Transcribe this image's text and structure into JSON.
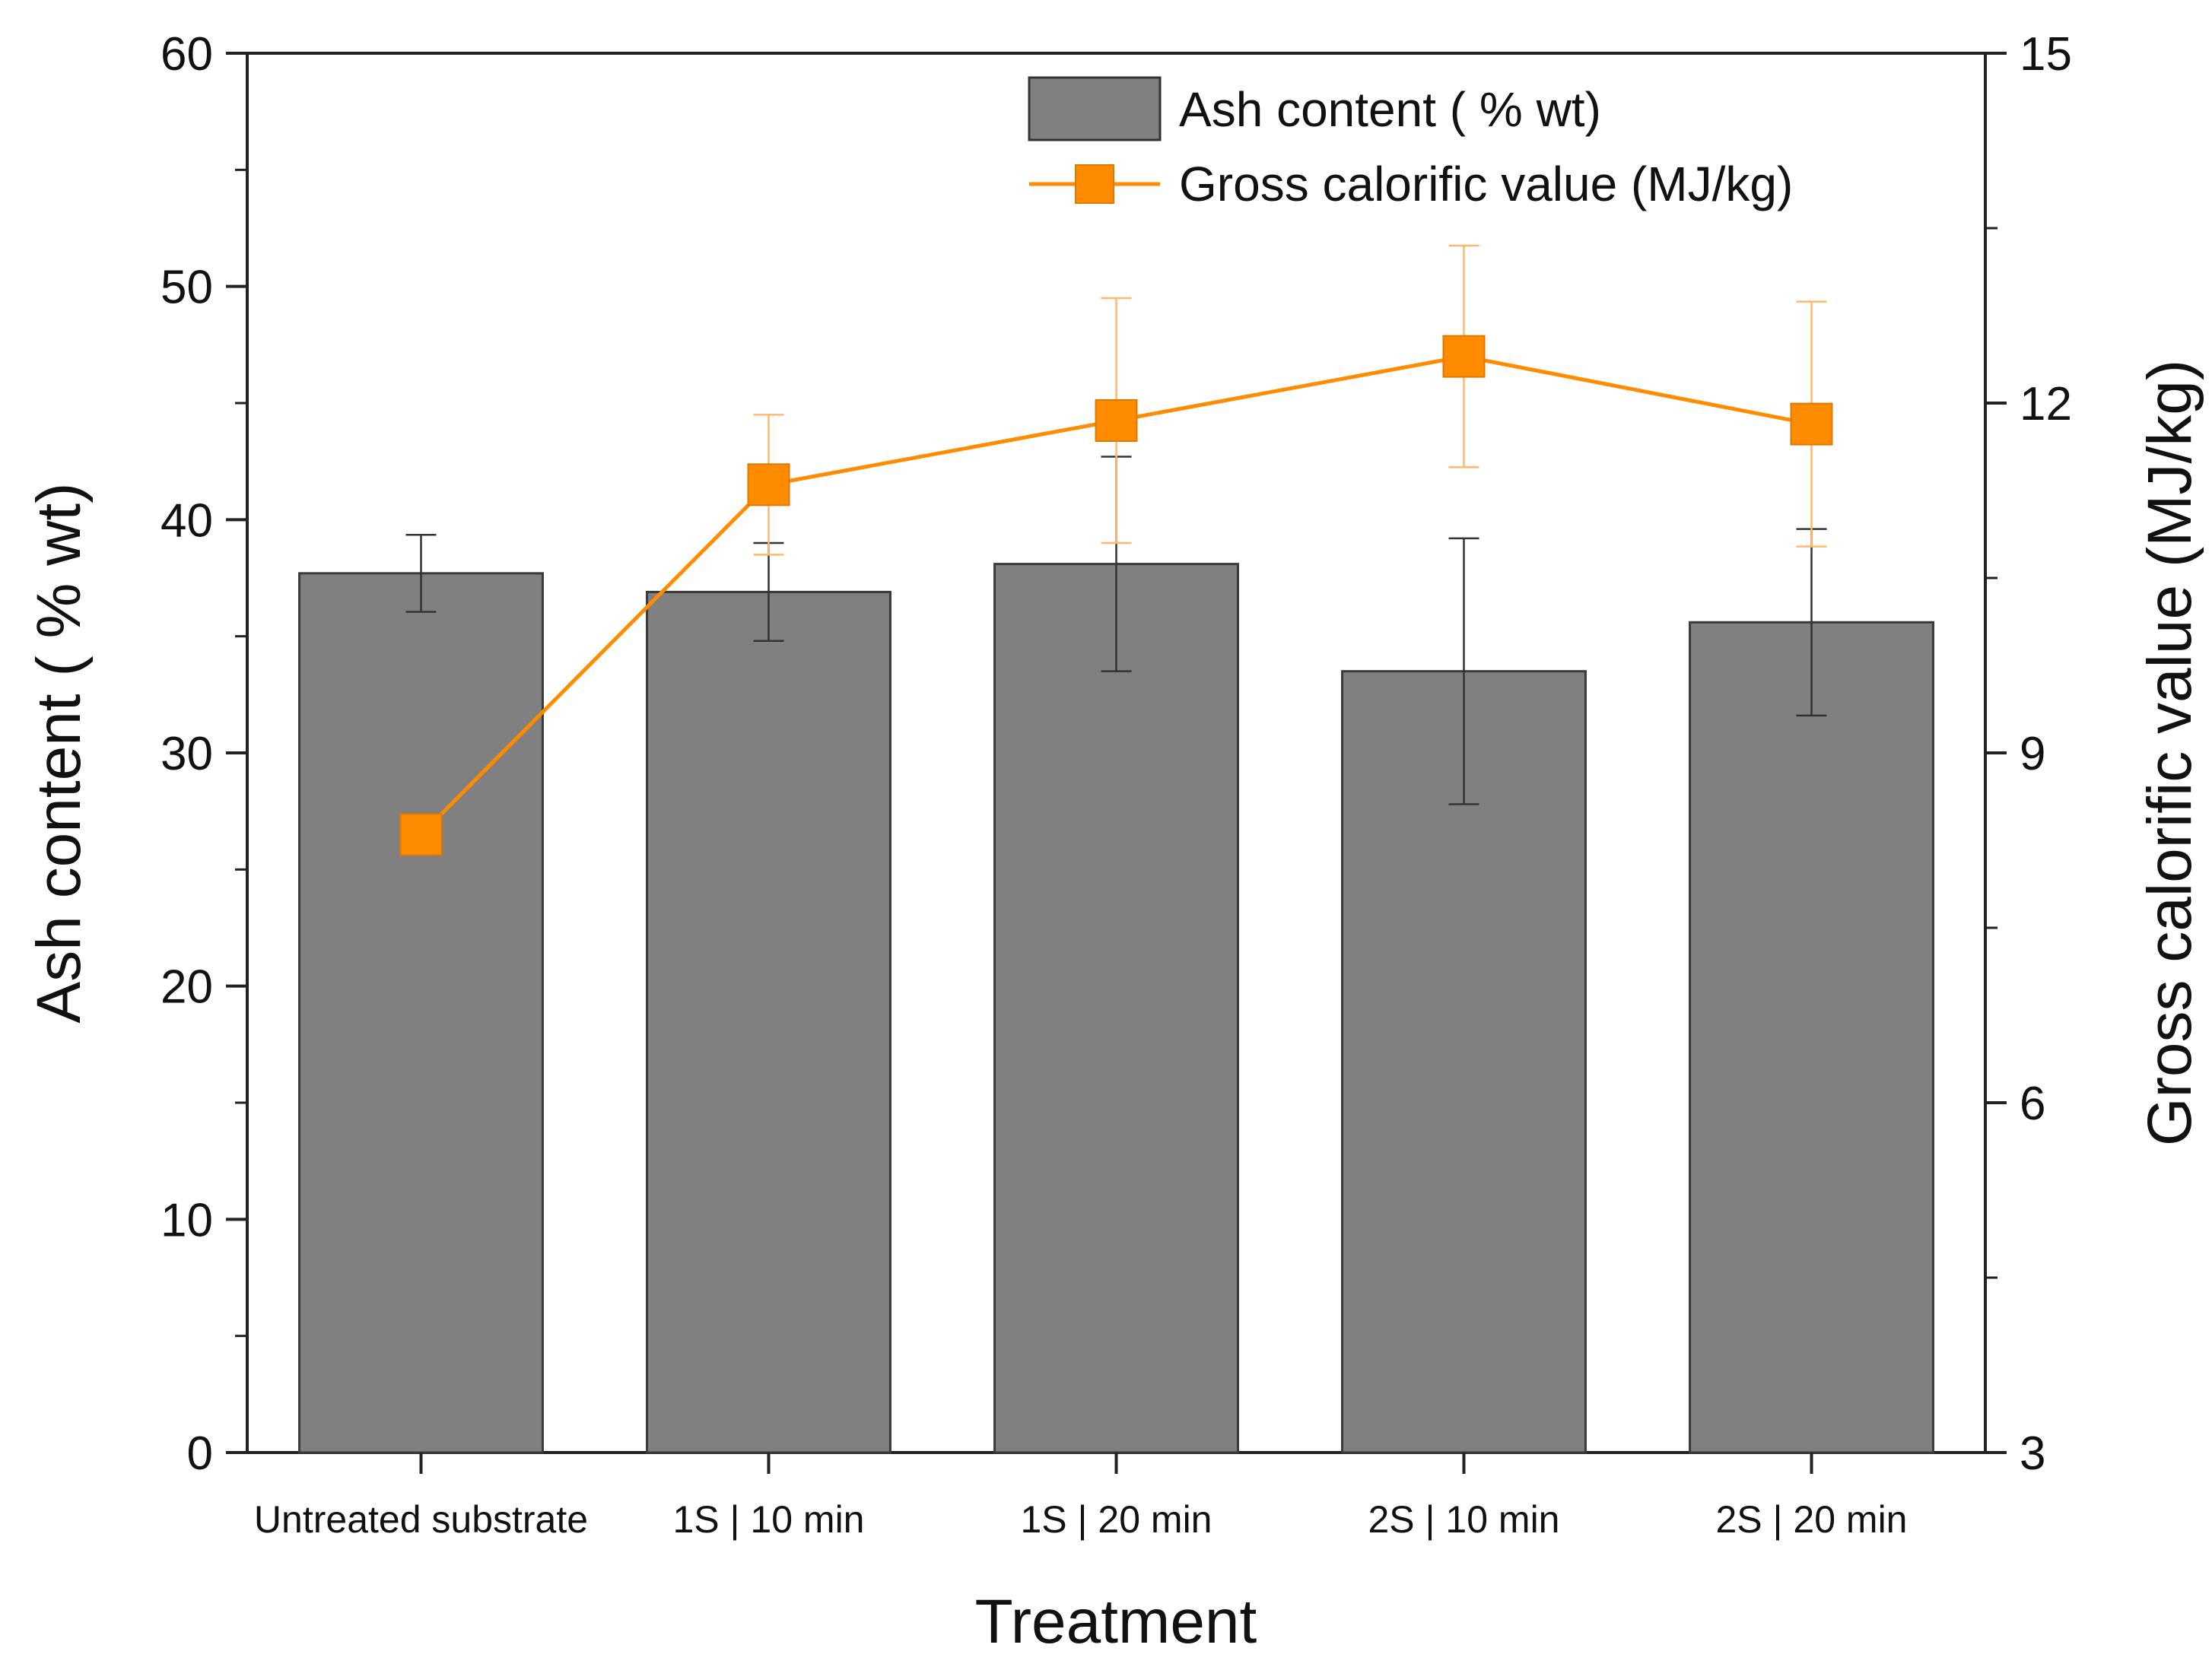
{
  "chart_data": {
    "type": "bar",
    "xlabel": "Treatment",
    "ylabel_left": "Ash content ( % wt)",
    "ylabel_right": "Gross calorific value (MJ/kg)",
    "categories": [
      "Untreated substrate",
      "1S | 10 min",
      "1S | 20 min",
      "2S | 10 min",
      "2S | 20 min"
    ],
    "y_left": {
      "min": 0,
      "max": 60,
      "ticks": [
        "0",
        "10",
        "20",
        "30",
        "40",
        "50",
        "60"
      ]
    },
    "y_right": {
      "min": 3,
      "max": 15,
      "ticks": [
        "3",
        "6",
        "9",
        "12",
        "15"
      ]
    },
    "series": [
      {
        "name": "Ash content ( % wt)",
        "kind": "bar",
        "axis": "left",
        "color": "#808080",
        "values": [
          37.7,
          36.9,
          38.1,
          33.5,
          35.6
        ],
        "errors": [
          1.65,
          2.1,
          4.6,
          5.7,
          4.0
        ]
      },
      {
        "name": "Gross calorific value (MJ/kg)",
        "kind": "line",
        "axis": "right",
        "color": "#FF8C00",
        "values": [
          8.3,
          11.3,
          11.85,
          12.4,
          11.82
        ],
        "errors": [
          0.0,
          0.6,
          1.05,
          0.95,
          1.05
        ]
      }
    ],
    "legend": "top-right"
  }
}
